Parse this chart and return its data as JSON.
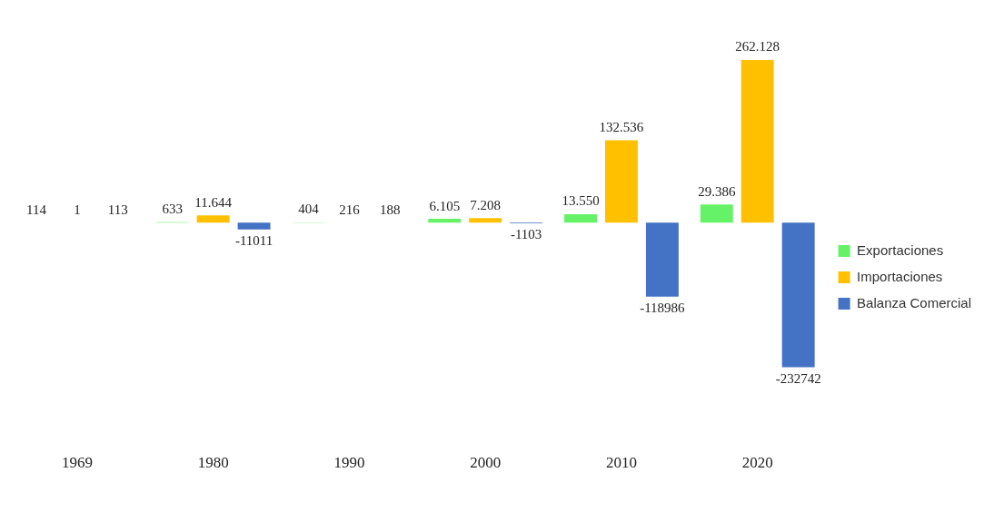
{
  "chart_data": {
    "type": "bar",
    "categories": [
      "1969",
      "1980",
      "1990",
      "2000",
      "2010",
      "2020"
    ],
    "series": [
      {
        "name": "Exportaciones",
        "color": "#66f266",
        "values": [
          114,
          633,
          404,
          6105,
          13550,
          29386
        ],
        "value_labels": [
          "114",
          "633",
          "404",
          "6.105",
          "13.550",
          "29.386"
        ]
      },
      {
        "name": "Importaciones",
        "color": "#ffc000",
        "values": [
          1,
          11644,
          216,
          7208,
          132536,
          262128
        ],
        "value_labels": [
          "1",
          "11.644",
          "216",
          "7.208",
          "132.536",
          "262.128"
        ]
      },
      {
        "name": "Balanza Comercial",
        "color": "#4472c4",
        "values": [
          113,
          -11011,
          188,
          -1103,
          -118986,
          -232742
        ],
        "value_labels": [
          "113",
          "-11011",
          "188",
          "-1103",
          "-118986",
          "-232742"
        ]
      }
    ],
    "legend": "right",
    "grid": false
  }
}
